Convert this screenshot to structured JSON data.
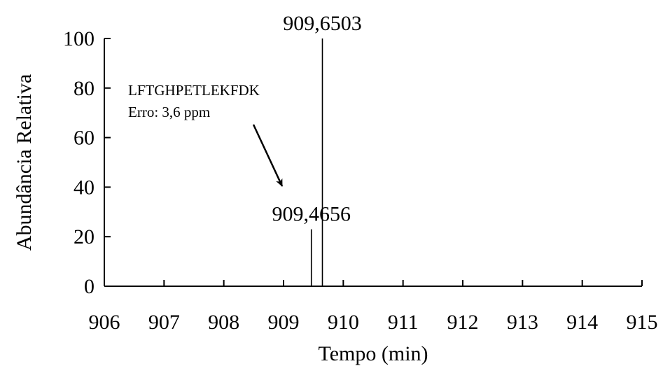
{
  "chart_data": {
    "type": "bar",
    "title": "",
    "xlabel": "Tempo (min)",
    "ylabel": "Abundância Relativa",
    "xlim": [
      906,
      915
    ],
    "ylim": [
      0,
      100
    ],
    "x_ticks": [
      "906",
      "907",
      "908",
      "909",
      "910",
      "911",
      "912",
      "913",
      "914",
      "915"
    ],
    "y_ticks": [
      "0",
      "20",
      "40",
      "60",
      "80",
      "100"
    ],
    "grid": false,
    "peaks": [
      {
        "x": 909.4656,
        "y": 23,
        "label": "909,4656"
      },
      {
        "x": 909.6503,
        "y": 100,
        "label": "909,6503"
      }
    ],
    "annotation": {
      "sequence": "LFTGHPETLEKFDK",
      "error": "Erro: 3,6 ppm",
      "points_to": "909,4656"
    },
    "colors": {
      "axis": "#000000",
      "peaks": "#000000",
      "background": "#ffffff"
    }
  }
}
